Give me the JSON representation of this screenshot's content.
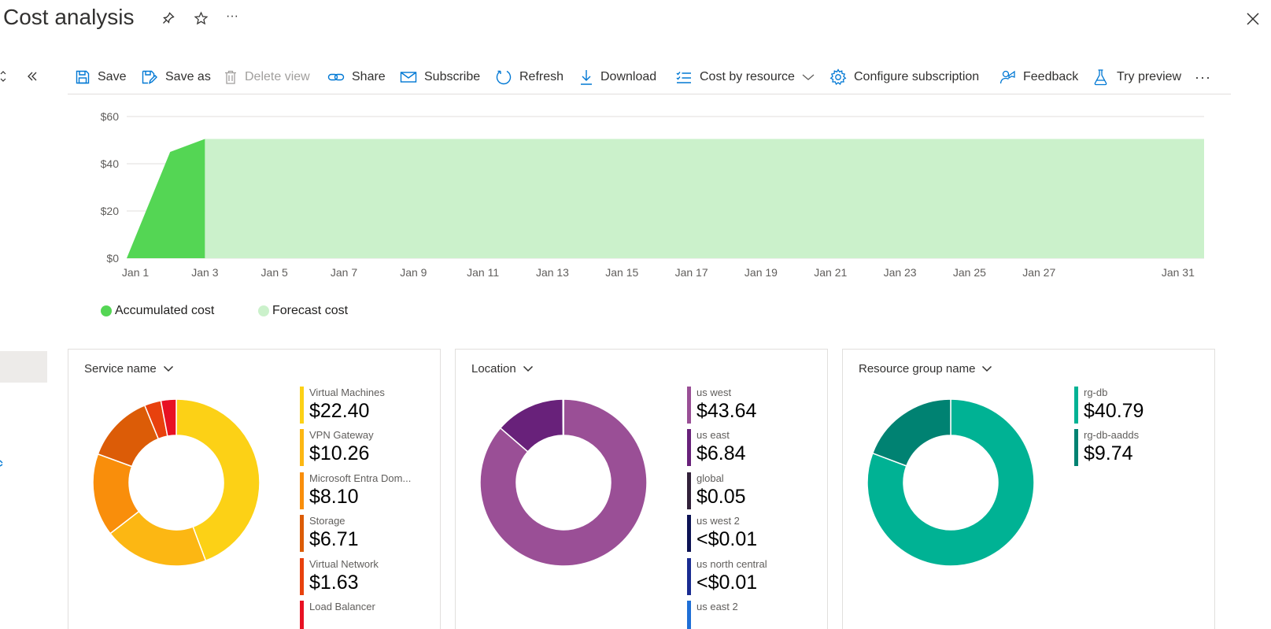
{
  "header": {
    "title": "Cost analysis",
    "pin_icon": "pin-icon",
    "favorite_icon": "star-icon",
    "more_label": "···",
    "close_icon": "close-icon"
  },
  "left_nav": {
    "collapse_icon": "chevron-double-left-icon"
  },
  "toolbar": {
    "save": "Save",
    "save_as": "Save as",
    "delete_view": "Delete view",
    "share": "Share",
    "subscribe": "Subscribe",
    "refresh": "Refresh",
    "download": "Download",
    "view_select": "Cost by resource",
    "configure_subscription": "Configure subscription",
    "feedback": "Feedback",
    "try_preview": "Try preview",
    "more": "···"
  },
  "chart_data": [
    {
      "type": "area",
      "y_ticks": [
        "$0",
        "$20",
        "$40",
        "$60"
      ],
      "ylim": [
        0,
        60
      ],
      "x_ticks": [
        "Jan 1",
        "Jan 3",
        "Jan 5",
        "Jan 7",
        "Jan 9",
        "Jan 11",
        "Jan 13",
        "Jan 15",
        "Jan 17",
        "Jan 19",
        "Jan 21",
        "Jan 23",
        "Jan 25",
        "Jan 27",
        "Jan 31"
      ],
      "x_tick_days": [
        1,
        3,
        5,
        7,
        9,
        11,
        13,
        15,
        17,
        19,
        21,
        23,
        25,
        27,
        31
      ],
      "xlim": [
        0.75,
        31.75
      ],
      "grid": true,
      "legend_position": "bottom-left",
      "series": [
        {
          "name": "Accumulated cost",
          "color": "#54d654",
          "points": [
            [
              0.75,
              0
            ],
            [
              2,
              45
            ],
            [
              3,
              50.5
            ]
          ]
        },
        {
          "name": "Forecast cost",
          "color": "#cbf1cb",
          "points": [
            [
              3,
              50.5
            ],
            [
              31.75,
              50.5
            ]
          ]
        }
      ]
    },
    {
      "type": "pie",
      "variant": "donut",
      "title": "Service name",
      "slices": [
        {
          "label": "Virtual Machines",
          "value": 22.4,
          "color": "#fcd116"
        },
        {
          "label": "VPN Gateway",
          "value": 10.26,
          "color": "#fcb713"
        },
        {
          "label": "Microsoft Entra Dom...",
          "value": 8.1,
          "color": "#f98e0b"
        },
        {
          "label": "Storage",
          "value": 6.71,
          "color": "#dc5c07"
        },
        {
          "label": "Virtual Network",
          "value": 1.63,
          "color": "#e8410d"
        },
        {
          "label": "Load Balancer",
          "value": 1.5,
          "color": "#e81123"
        }
      ]
    },
    {
      "type": "pie",
      "variant": "donut",
      "title": "Location",
      "slices": [
        {
          "label": "us west",
          "value": 43.64,
          "color": "#9a4f96"
        },
        {
          "label": "us east",
          "value": 6.84,
          "color": "#68217a"
        },
        {
          "label": "global",
          "value": 0.05,
          "color": "#32213a"
        },
        {
          "label": "us west 2",
          "value": 0.005,
          "color": "#0c1254"
        },
        {
          "label": "us north central",
          "value": 0.005,
          "color": "#1a2c91"
        }
      ]
    },
    {
      "type": "pie",
      "variant": "donut",
      "title": "Resource group name",
      "slices": [
        {
          "label": "rg-db",
          "value": 40.79,
          "color": "#00b294"
        },
        {
          "label": "rg-db-aadds",
          "value": 9.74,
          "color": "#008272"
        }
      ]
    }
  ],
  "cards": {
    "service": {
      "header": "Service name",
      "items": [
        {
          "name": "Virtual Machines",
          "amount": "$22.40",
          "color": "#fcd116"
        },
        {
          "name": "VPN Gateway",
          "amount": "$10.26",
          "color": "#fcb713"
        },
        {
          "name": "Microsoft Entra Dom...",
          "amount": "$8.10",
          "color": "#f98e0b"
        },
        {
          "name": "Storage",
          "amount": "$6.71",
          "color": "#dc5c07"
        },
        {
          "name": "Virtual Network",
          "amount": "$1.63",
          "color": "#e8410d"
        },
        {
          "name": "Load Balancer",
          "amount": "",
          "color": "#e81123"
        }
      ]
    },
    "location": {
      "header": "Location",
      "items": [
        {
          "name": "us west",
          "amount": "$43.64",
          "color": "#9a4f96"
        },
        {
          "name": "us east",
          "amount": "$6.84",
          "color": "#68217a"
        },
        {
          "name": "global",
          "amount": "$0.05",
          "color": "#32213a"
        },
        {
          "name": "us west 2",
          "amount": "<$0.01",
          "color": "#0c1254"
        },
        {
          "name": "us north central",
          "amount": "<$0.01",
          "color": "#1a2c91"
        },
        {
          "name": "us east 2",
          "amount": "",
          "color": "#1f6fd6"
        }
      ]
    },
    "resource_group": {
      "header": "Resource group name",
      "items": [
        {
          "name": "rg-db",
          "amount": "$40.79",
          "color": "#00b294"
        },
        {
          "name": "rg-db-aadds",
          "amount": "$9.74",
          "color": "#008272"
        }
      ]
    }
  }
}
